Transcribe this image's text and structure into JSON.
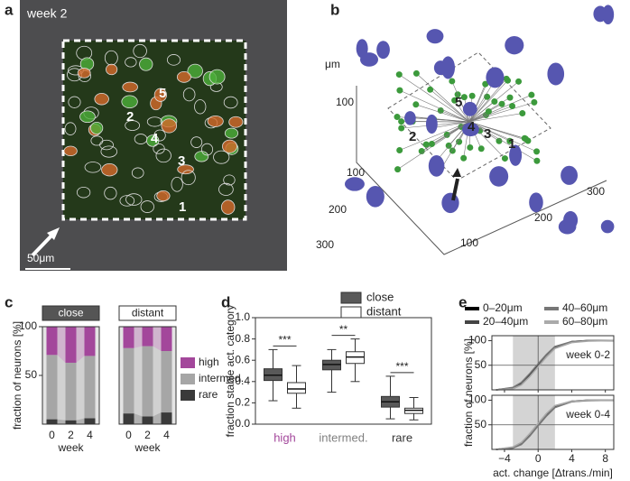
{
  "panel_a": {
    "letter": "a",
    "title": "week 2",
    "scale_bar": "50μm",
    "labels": [
      "1",
      "2",
      "3",
      "4",
      "5"
    ]
  },
  "panel_b": {
    "letter": "b",
    "z_label": "μm",
    "z_ticks": [
      100
    ],
    "x_ticks": [
      100,
      200,
      300
    ],
    "y_ticks": [
      100,
      200,
      300
    ],
    "labels": [
      "1",
      "2",
      "3",
      "4",
      "5"
    ]
  },
  "chart_data": [
    {
      "type": "stacked_bar",
      "panel": "c",
      "ylabel": "fraction of neurons [%]",
      "xlabel": "week",
      "groups": [
        "close",
        "distant"
      ],
      "categories": [
        "0",
        "2",
        "4",
        "0",
        "2",
        "4"
      ],
      "series": [
        {
          "name": "rare",
          "color": "#3a3a3a",
          "values": [
            5,
            4,
            6,
            11,
            8,
            12
          ]
        },
        {
          "name": "intermed.",
          "color": "#a6a6a6",
          "values": [
            66,
            59,
            64,
            67,
            72,
            63
          ]
        },
        {
          "name": "high",
          "color": "#a3479b",
          "values": [
            29,
            37,
            30,
            22,
            20,
            25
          ]
        }
      ],
      "ylim": [
        0,
        100
      ],
      "yticks": [
        50,
        100
      ],
      "legend": "right"
    },
    {
      "type": "box",
      "panel": "d",
      "ylabel": "fraction stable act. category",
      "categories": [
        "high",
        "intermed.",
        "rare"
      ],
      "category_colors": [
        "#a3479b",
        "#808080",
        "#333333"
      ],
      "series": [
        {
          "name": "close",
          "color": "#595959",
          "values": [
            [
              0.22,
              0.41,
              0.46,
              0.52,
              0.7
            ],
            [
              0.3,
              0.51,
              0.56,
              0.6,
              0.7
            ],
            [
              0.05,
              0.16,
              0.21,
              0.26,
              0.45
            ]
          ]
        },
        {
          "name": "distant",
          "color": "#ffffff",
          "values": [
            [
              0.15,
              0.29,
              0.33,
              0.39,
              0.55
            ],
            [
              0.4,
              0.57,
              0.63,
              0.68,
              0.8
            ],
            [
              0.04,
              0.1,
              0.13,
              0.15,
              0.25
            ]
          ]
        }
      ],
      "annotations": [
        "***",
        "**",
        "***"
      ],
      "ylim": [
        0,
        1
      ],
      "yticks": [
        {
          "value": 0,
          "label": "0.0"
        },
        {
          "value": 0.2,
          "label": "0.2"
        },
        {
          "value": 0.4,
          "label": "0.4"
        },
        {
          "value": 0.6,
          "label": "0.6"
        },
        {
          "value": 0.8,
          "label": "0.8"
        },
        {
          "value": 1,
          "label": "1.0"
        }
      ],
      "legend": "top"
    },
    {
      "type": "line",
      "panel": "e",
      "ylabel": "fraction of neurons [%]",
      "xlabel": "act. change [Δtrans./min]",
      "facets": [
        "week 0-2",
        "week 0-4"
      ],
      "x": [
        -5,
        -3,
        -2,
        -1,
        0,
        1,
        2,
        4,
        6,
        9
      ],
      "series": [
        {
          "name": "0–20μm",
          "color": "#000000",
          "values": [
            [
              0,
              4,
              13,
              30,
              50,
              70,
              86,
              98,
              100,
              100
            ],
            [
              0,
              3,
              12,
              30,
              52,
              72,
              88,
              98,
              100,
              100
            ]
          ]
        },
        {
          "name": "20–40μm",
          "color": "#444444",
          "values": [
            [
              0,
              3,
              11,
              28,
              48,
              69,
              86,
              97,
              100,
              100
            ],
            [
              0,
              4,
              13,
              31,
              50,
              70,
              87,
              97,
              100,
              100
            ]
          ]
        },
        {
          "name": "40–60μm",
          "color": "#777777",
          "values": [
            [
              0,
              5,
              15,
              33,
              53,
              72,
              88,
              98,
              100,
              100
            ],
            [
              0,
              3,
              10,
              27,
              48,
              68,
              85,
              97,
              99,
              100
            ]
          ]
        },
        {
          "name": "60–80μm",
          "color": "#aaaaaa",
          "values": [
            [
              0,
              2,
              10,
              27,
              47,
              67,
              84,
              96,
              99,
              100
            ],
            [
              0,
              5,
              14,
              32,
              53,
              73,
              89,
              98,
              100,
              100
            ]
          ]
        }
      ],
      "xlim": [
        -5.5,
        9
      ],
      "xticks": [
        {
          "value": -4,
          "label": "−4"
        },
        0,
        4,
        8
      ],
      "ylim": [
        0,
        110
      ],
      "yticks": [
        50,
        100
      ],
      "span": [
        -3,
        2
      ],
      "hline": 50,
      "vline": 0,
      "legend": "top"
    }
  ]
}
